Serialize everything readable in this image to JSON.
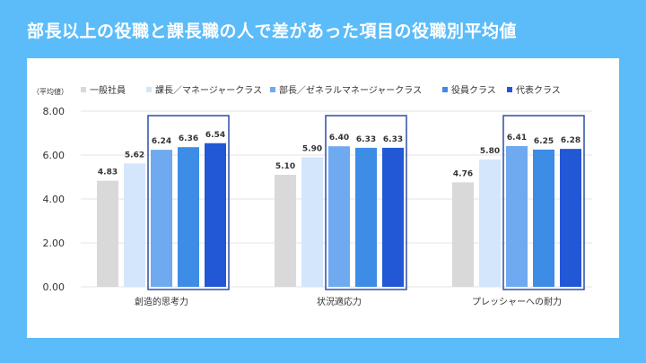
{
  "title": "部長以上の役職と課長職の人で差があった項目の役職別平均値",
  "colors": {
    "background": "#5bbcf9",
    "panel": "#ffffff",
    "highlight_box": "#2d4fa6",
    "grid": "#e3e3e3",
    "axis_text": "#333333"
  },
  "chart_data": {
    "type": "bar",
    "ylabel": "（平均値）",
    "ylim": [
      0,
      8
    ],
    "yticks": [
      "0.00",
      "2.00",
      "4.00",
      "6.00",
      "8.00"
    ],
    "ytick_values": [
      0,
      2,
      4,
      6,
      8
    ],
    "categories": [
      "創造的思考力",
      "状況適応力",
      "プレッシャーへの耐力"
    ],
    "legend_position": "top",
    "highlighted_series": [
      2,
      3,
      4
    ],
    "series": [
      {
        "name": "一般社員",
        "color": "#d9d9d9",
        "values": [
          4.83,
          5.1,
          4.76
        ],
        "labels": [
          "4.83",
          "5.10",
          "4.76"
        ]
      },
      {
        "name": "課長／マネージャークラス",
        "color": "#d4e6fb",
        "values": [
          5.62,
          5.9,
          5.8
        ],
        "labels": [
          "5.62",
          "5.90",
          "5.80"
        ]
      },
      {
        "name": "部長／ゼネラルマネージャークラス",
        "color": "#6faaf0",
        "values": [
          6.24,
          6.4,
          6.41
        ],
        "labels": [
          "6.24",
          "6.40",
          "6.41"
        ]
      },
      {
        "name": "役員クラス",
        "color": "#3d8de6",
        "values": [
          6.36,
          6.33,
          6.25
        ],
        "labels": [
          "6.36",
          "6.33",
          "6.25"
        ]
      },
      {
        "name": "代表クラス",
        "color": "#2257d6",
        "values": [
          6.54,
          6.33,
          6.28
        ],
        "labels": [
          "6.54",
          "6.33",
          "6.28"
        ]
      }
    ]
  }
}
